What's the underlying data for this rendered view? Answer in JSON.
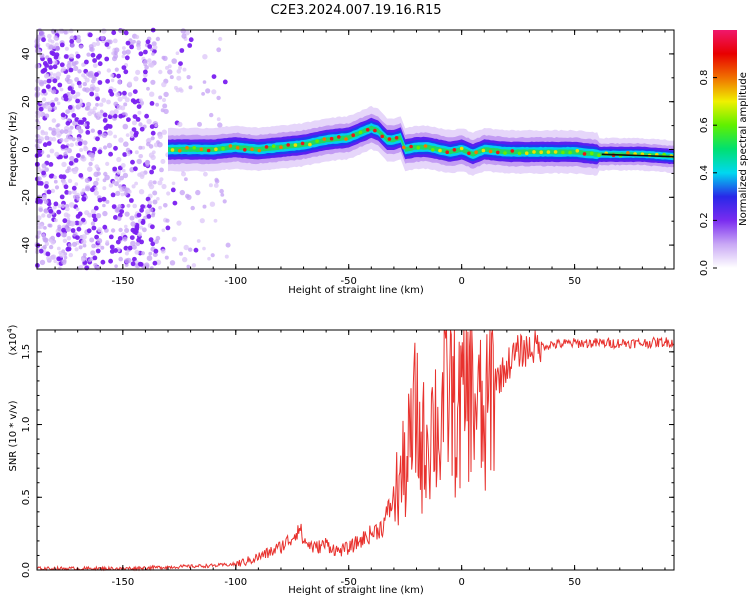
{
  "title": "C2E3.2024.007.19.16.R15",
  "chart_data": [
    {
      "type": "heatmap",
      "xlabel": "Height of straight line (km)",
      "ylabel": "Frequency (Hz)",
      "xlim": [
        -188,
        94
      ],
      "ylim": [
        -50,
        50
      ],
      "x_ticks": [
        -150,
        -100,
        -50,
        0,
        50
      ],
      "x_tick_labels": [
        "-150",
        "-100",
        "-50",
        "0",
        "50"
      ],
      "y_ticks": [
        -40,
        -20,
        0,
        20,
        40
      ],
      "y_tick_labels": [
        "-40",
        "-20",
        "0",
        "20",
        "40"
      ],
      "colorbar": {
        "label": "Normalized spectral amplitude",
        "range": [
          0,
          1
        ],
        "ticks": [
          0.0,
          0.2,
          0.4,
          0.6,
          0.8
        ],
        "tick_labels": [
          "0.0",
          "0.2",
          "0.4",
          "0.6",
          "0.8"
        ],
        "colors": [
          "#ffffff",
          "#c9a8f5",
          "#7a2cf0",
          "#2828e8",
          "#00d8f0",
          "#00e070",
          "#60f000",
          "#f0f000",
          "#f07000",
          "#e80000",
          "#f0186c"
        ]
      },
      "noise_region_x": [
        -188,
        -103
      ],
      "ridge": {
        "x": [
          -130,
          -120,
          -110,
          -100,
          -90,
          -80,
          -70,
          -60,
          -50,
          -45,
          -40,
          -37,
          -33,
          -30,
          -27,
          -25,
          -20,
          -15,
          -10,
          -5,
          0,
          5,
          10,
          20,
          30,
          40,
          50,
          60,
          70,
          80,
          94
        ],
        "y": [
          0,
          0,
          0,
          1,
          0,
          1,
          2,
          4,
          5,
          7,
          9,
          8,
          4,
          4,
          5,
          0,
          1,
          1,
          0,
          -1,
          0,
          -2,
          0,
          -1,
          -1,
          -1,
          -1,
          -2,
          -2,
          -2,
          -3
        ]
      }
    },
    {
      "type": "line",
      "xlabel": "Height of straight line (km)",
      "ylabel": "SNR (10 * v/v)",
      "multiplier_label": "(x10",
      "multiplier_exponent": "4",
      "multiplier_close": ")",
      "xlim": [
        -188,
        94
      ],
      "ylim": [
        0,
        1.65
      ],
      "x_ticks": [
        -150,
        -100,
        -50,
        0,
        50
      ],
      "x_tick_labels": [
        "-150",
        "-100",
        "-50",
        "0",
        "50"
      ],
      "y_ticks": [
        0.0,
        0.5,
        1.0,
        1.5
      ],
      "y_tick_labels": [
        "0.0",
        "0.5",
        "1.0",
        "1.5"
      ],
      "color": "#e8322e",
      "series": [
        {
          "x": [
            -188,
            -170,
            -150,
            -130,
            -110,
            -100,
            -95,
            -90,
            -85,
            -80,
            -75,
            -72,
            -70,
            -65,
            -60,
            -55,
            -50,
            -45,
            -40,
            -35,
            -30,
            -25,
            -22,
            -20,
            -18,
            -15,
            -12,
            -10,
            -8,
            -5,
            -2,
            0,
            3,
            5,
            8,
            10,
            13,
            15,
            18,
            20,
            22,
            25,
            30,
            35,
            40,
            50,
            60,
            70,
            80,
            94
          ],
          "y": [
            0.01,
            0.01,
            0.01,
            0.02,
            0.03,
            0.04,
            0.06,
            0.09,
            0.12,
            0.16,
            0.22,
            0.3,
            0.2,
            0.15,
            0.18,
            0.13,
            0.15,
            0.2,
            0.25,
            0.3,
            0.5,
            0.7,
            0.9,
            1.1,
            0.8,
            0.95,
            1.05,
            0.9,
            1.2,
            1.25,
            1.0,
            1.15,
            1.3,
            1.2,
            1.1,
            0.9,
            1.3,
            1.3,
            1.35,
            1.4,
            1.45,
            1.5,
            1.52,
            1.54,
            1.55,
            1.56,
            1.56,
            1.56,
            1.56,
            1.57
          ]
        }
      ]
    }
  ]
}
